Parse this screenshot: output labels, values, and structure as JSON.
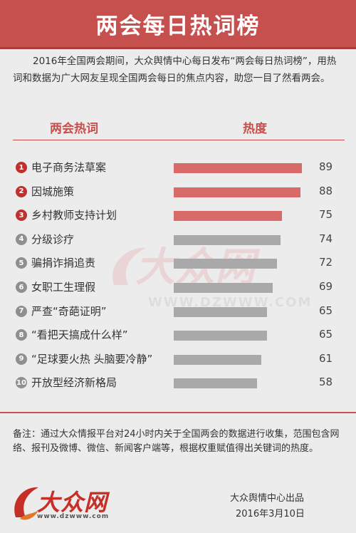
{
  "header": {
    "title": "两会每日热词榜"
  },
  "intro": "2016年全国两会期间，大众舆情中心每日发布“两会每日热词榜”，用热词和数据为广大网友呈现全国两会每日的焦点内容，助您一目了然看两会。",
  "chart_data": {
    "type": "bar",
    "orientation": "horizontal",
    "column_headers": {
      "word": "两会热词",
      "heat": "热度"
    },
    "xlim": [
      0,
      100
    ],
    "items": [
      {
        "rank": "1",
        "word": "电子商务法草案",
        "value": 89,
        "color": "#d86a6a"
      },
      {
        "rank": "2",
        "word": "因城施策",
        "value": 88,
        "color": "#d86a6a"
      },
      {
        "rank": "3",
        "word": "乡村教师支持计划",
        "value": 75,
        "color": "#d86a6a"
      },
      {
        "rank": "4",
        "word": "分级诊疗",
        "value": 74,
        "color": "#a9a9a9"
      },
      {
        "rank": "5",
        "word": "骗捐诈捐追责",
        "value": 72,
        "color": "#a9a9a9"
      },
      {
        "rank": "6",
        "word": "女职工生理假",
        "value": 69,
        "color": "#a9a9a9"
      },
      {
        "rank": "7",
        "word": "严查“奇葩证明”",
        "value": 65,
        "color": "#a9a9a9"
      },
      {
        "rank": "8",
        "word": "“看把天搞成什么样”",
        "value": 65,
        "color": "#a9a9a9"
      },
      {
        "rank": "9",
        "word": "“足球要火热 头脑要冷静”",
        "value": 61,
        "color": "#a9a9a9"
      },
      {
        "rank": "10",
        "word": "开放型经济新格局",
        "value": 58,
        "color": "#a9a9a9"
      }
    ],
    "rank_colors": {
      "top": "#c0302e",
      "other": "#8f8f8f"
    }
  },
  "watermark": {
    "text": "大众网",
    "url": "WWW.DZWWW.COM"
  },
  "note": "备注：通过大众情报平台对24小时内关于全国两会的数据进行收集，范围包含网络、报刊及微博、微信、新闻客户端等，根据权重赋值得出关键词的热度。",
  "footer": {
    "logo_text": "大众网",
    "logo_url": "www.dzwww.com",
    "publisher": "大众舆情中心出品",
    "date": "2016年3月10日"
  }
}
